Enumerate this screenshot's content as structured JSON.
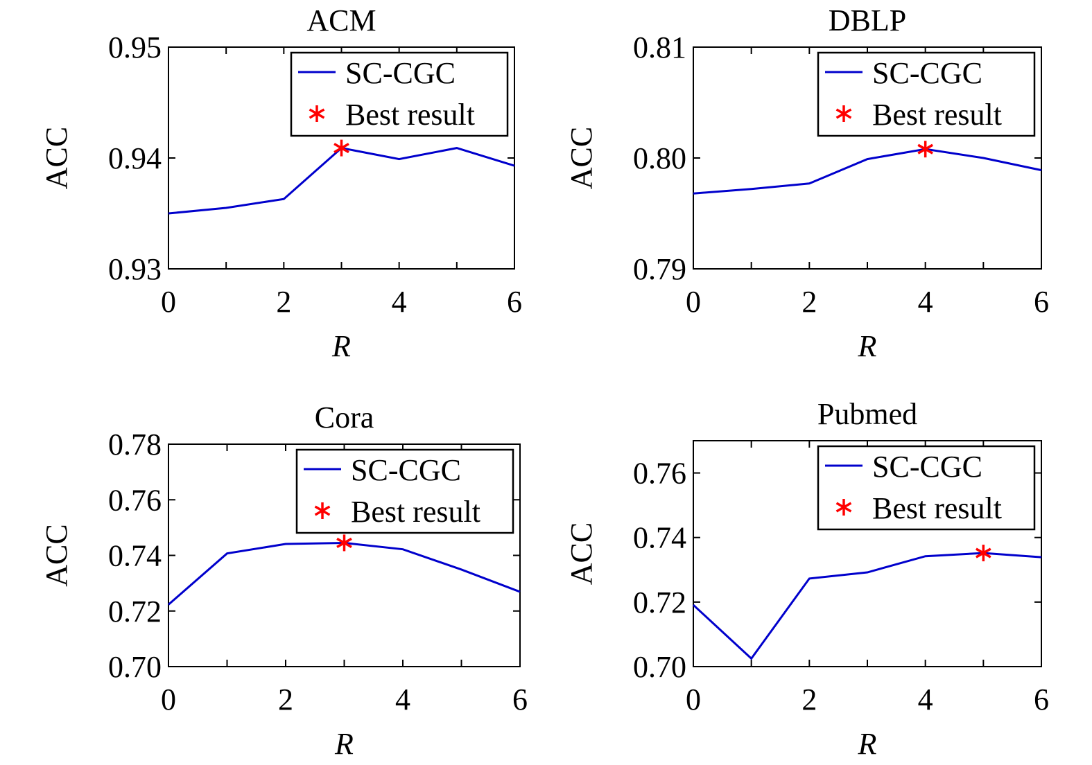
{
  "chart_data": [
    {
      "type": "line",
      "title": "ACM",
      "xlabel": "R",
      "ylabel": "ACC",
      "xlim": [
        0,
        6
      ],
      "ylim": [
        0.93,
        0.95
      ],
      "xticks": [
        "0",
        "2",
        "4",
        "6"
      ],
      "yticks": [
        "0.93",
        "0.94",
        "0.95"
      ],
      "grid": false,
      "legend_position": "top-right",
      "series": [
        {
          "name": "SC-CGC",
          "color": "#0000cc",
          "x": [
            0,
            1,
            2,
            3,
            4,
            5,
            6
          ],
          "y": [
            0.935,
            0.9355,
            0.9363,
            0.9409,
            0.9399,
            0.9409,
            0.9393
          ]
        }
      ],
      "best": {
        "name": "Best result",
        "color": "#ff0000",
        "x": 3,
        "y": 0.9409
      }
    },
    {
      "type": "line",
      "title": "DBLP",
      "xlabel": "R",
      "ylabel": "ACC",
      "xlim": [
        0,
        6
      ],
      "ylim": [
        0.79,
        0.81
      ],
      "xticks": [
        "0",
        "2",
        "4",
        "6"
      ],
      "yticks": [
        "0.79",
        "0.80",
        "0.81"
      ],
      "grid": false,
      "legend_position": "top-right",
      "series": [
        {
          "name": "SC-CGC",
          "color": "#0000cc",
          "x": [
            0,
            1,
            2,
            3,
            4,
            5,
            6
          ],
          "y": [
            0.7968,
            0.7972,
            0.7977,
            0.7999,
            0.8008,
            0.8,
            0.7989
          ]
        }
      ],
      "best": {
        "name": "Best result",
        "color": "#ff0000",
        "x": 4,
        "y": 0.8008
      }
    },
    {
      "type": "line",
      "title": "Cora",
      "xlabel": "R",
      "ylabel": "ACC",
      "xlim": [
        0,
        6
      ],
      "ylim": [
        0.7,
        0.78
      ],
      "xticks": [
        "0",
        "2",
        "4",
        "6"
      ],
      "yticks": [
        "0.70",
        "0.72",
        "0.74",
        "0.76",
        "0.78"
      ],
      "grid": false,
      "legend_position": "top-right",
      "series": [
        {
          "name": "SC-CGC",
          "color": "#0000cc",
          "x": [
            0,
            1,
            2,
            3,
            4,
            5,
            6
          ],
          "y": [
            0.7223,
            0.7407,
            0.7441,
            0.7445,
            0.7422,
            0.7349,
            0.7269
          ]
        }
      ],
      "best": {
        "name": "Best result",
        "color": "#ff0000",
        "x": 3,
        "y": 0.7445
      }
    },
    {
      "type": "line",
      "title": "Pubmed",
      "xlabel": "R",
      "ylabel": "ACC",
      "xlim": [
        0,
        6
      ],
      "ylim": [
        0.7,
        0.77
      ],
      "xticks": [
        "0",
        "2",
        "4",
        "6"
      ],
      "yticks": [
        "0.70",
        "0.72",
        "0.74",
        "0.76"
      ],
      "grid": false,
      "legend_position": "top-right",
      "series": [
        {
          "name": "SC-CGC",
          "color": "#0000cc",
          "x": [
            0,
            1,
            2,
            3,
            4,
            5,
            6
          ],
          "y": [
            0.7191,
            0.7025,
            0.7273,
            0.7292,
            0.7342,
            0.7352,
            0.7339
          ]
        }
      ],
      "best": {
        "name": "Best result",
        "color": "#ff0000",
        "x": 5,
        "y": 0.7352
      }
    }
  ]
}
